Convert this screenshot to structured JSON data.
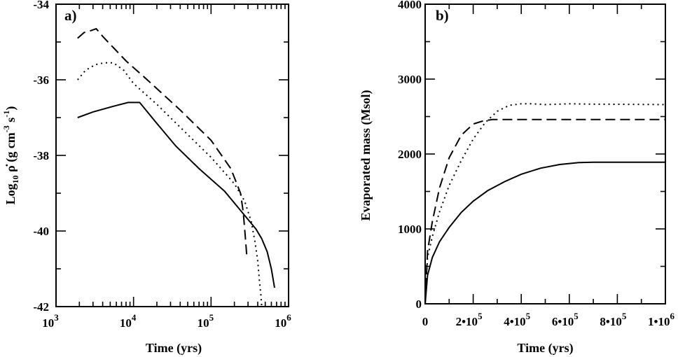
{
  "chart_data": [
    {
      "panel_label": "a)",
      "type": "line",
      "xlabel": "Time (yrs)",
      "ylabel": "Log10 ρ̇ (g cm-3 s-1)",
      "ylabel_parts": {
        "log": "Log",
        "sub": "10",
        "rho": "ρ̇",
        "unit1": " (g cm",
        "exp1": "-3",
        "unit2": " s",
        "exp2": "-1",
        "close": ")"
      },
      "x_scale": "log",
      "xlim": [
        1000,
        1000000
      ],
      "ylim": [
        -42,
        -34
      ],
      "x_ticks": [
        {
          "value": 1000,
          "base": "10",
          "exp": "3"
        },
        {
          "value": 10000,
          "base": "10",
          "exp": "4"
        },
        {
          "value": 100000,
          "base": "10",
          "exp": "5"
        },
        {
          "value": 1000000,
          "base": "10",
          "exp": "6"
        }
      ],
      "y_ticks": [
        {
          "value": -34,
          "label": "-34"
        },
        {
          "value": -36,
          "label": "-36"
        },
        {
          "value": -38,
          "label": "-38"
        },
        {
          "value": -40,
          "label": "-40"
        },
        {
          "value": -42,
          "label": "-42"
        }
      ],
      "series": [
        {
          "style": "solid",
          "x": [
            1900,
            3000,
            5500,
            8500,
            12000,
            19000,
            35000,
            70000,
            150000,
            250000,
            380000,
            450000,
            530000,
            600000,
            660000
          ],
          "y": [
            -37.0,
            -36.85,
            -36.7,
            -36.6,
            -36.6,
            -37.1,
            -37.75,
            -38.35,
            -38.95,
            -39.5,
            -39.95,
            -40.2,
            -40.55,
            -41.0,
            -41.5
          ]
        },
        {
          "style": "dotted",
          "x": [
            1900,
            2400,
            3200,
            4200,
            5500,
            7500,
            10000,
            20000,
            50000,
            100000,
            200000,
            270000,
            330000,
            370000,
            400000,
            420000,
            440000,
            450000
          ],
          "y": [
            -36.0,
            -35.75,
            -35.6,
            -35.55,
            -35.55,
            -35.75,
            -36.1,
            -36.65,
            -37.45,
            -38.05,
            -38.75,
            -39.2,
            -39.75,
            -40.3,
            -40.8,
            -41.3,
            -41.7,
            -42.0
          ]
        },
        {
          "style": "dashed",
          "x": [
            1900,
            2300,
            2800,
            3300,
            4000,
            5500,
            8000,
            15000,
            40000,
            100000,
            180000,
            240000,
            260000,
            275000,
            290000
          ],
          "y": [
            -34.9,
            -34.75,
            -34.7,
            -34.65,
            -34.85,
            -35.15,
            -35.5,
            -36.0,
            -36.8,
            -37.6,
            -38.35,
            -39.0,
            -39.5,
            -40.1,
            -40.7
          ]
        }
      ]
    },
    {
      "panel_label": "b)",
      "type": "line",
      "xlabel": "Time (yrs)",
      "ylabel": "Evaporated mass (Msol)",
      "xlim": [
        0,
        1000000
      ],
      "ylim": [
        0,
        4000
      ],
      "x_ticks": [
        {
          "value": 0,
          "label": "0"
        },
        {
          "value": 200000,
          "label": "2•10",
          "exp": "5"
        },
        {
          "value": 400000,
          "label": "4•10",
          "exp": "5"
        },
        {
          "value": 600000,
          "label": "6•10",
          "exp": "5"
        },
        {
          "value": 800000,
          "label": "8•10",
          "exp": "5"
        },
        {
          "value": 1000000,
          "label": "1•10",
          "exp": "6"
        }
      ],
      "y_ticks": [
        {
          "value": 0,
          "label": "0"
        },
        {
          "value": 1000,
          "label": "1000"
        },
        {
          "value": 2000,
          "label": "2000"
        },
        {
          "value": 3000,
          "label": "3000"
        },
        {
          "value": 4000,
          "label": "4000"
        }
      ],
      "series": [
        {
          "style": "solid",
          "x": [
            0,
            10000,
            30000,
            60000,
            100000,
            150000,
            200000,
            260000,
            330000,
            400000,
            480000,
            560000,
            640000,
            700000,
            800000,
            1000000
          ],
          "y": [
            0,
            380,
            620,
            830,
            1020,
            1220,
            1370,
            1510,
            1630,
            1730,
            1810,
            1860,
            1885,
            1890,
            1890,
            1890
          ]
        },
        {
          "style": "dotted",
          "x": [
            0,
            10000,
            30000,
            60000,
            100000,
            150000,
            200000,
            250000,
            300000,
            350000,
            400000,
            450000,
            500000,
            600000,
            700000,
            1000000
          ],
          "y": [
            0,
            620,
            900,
            1230,
            1580,
            1910,
            2200,
            2420,
            2570,
            2650,
            2670,
            2670,
            2660,
            2670,
            2665,
            2660
          ]
        },
        {
          "style": "dashed",
          "x": [
            0,
            10000,
            30000,
            60000,
            100000,
            150000,
            200000,
            240000,
            280000,
            320000,
            400000,
            600000,
            1000000
          ],
          "y": [
            0,
            700,
            1100,
            1550,
            1950,
            2250,
            2400,
            2440,
            2460,
            2460,
            2460,
            2460,
            2460
          ]
        }
      ]
    }
  ]
}
